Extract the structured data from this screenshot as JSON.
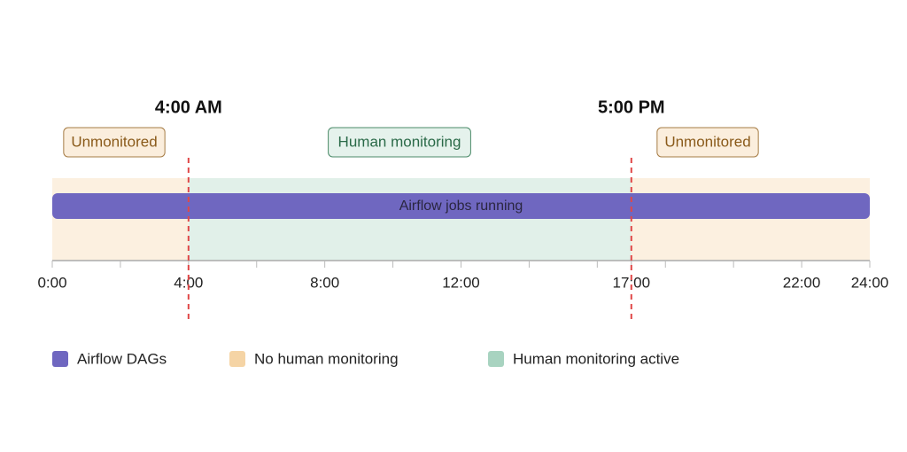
{
  "chart_data": {
    "type": "timeline",
    "xlim": [
      0,
      24
    ],
    "xticks": [
      {
        "value": 0,
        "label": "0:00"
      },
      {
        "value": 4,
        "label": "4:00"
      },
      {
        "value": 8,
        "label": "8:00"
      },
      {
        "value": 12,
        "label": "12:00"
      },
      {
        "value": 17,
        "label": "17:00"
      },
      {
        "value": 22,
        "label": "22:00"
      },
      {
        "value": 24,
        "label": "24:00"
      }
    ],
    "minor_xticks": [
      2,
      6,
      10,
      14,
      16,
      18,
      20
    ],
    "series": [
      {
        "name": "Airflow DAGs",
        "color": "#6f67c0"
      },
      {
        "name": "No human monitoring",
        "color": "#f5d4a5"
      },
      {
        "name": "Human monitoring active",
        "color": "#a8d3c0"
      }
    ],
    "bands": [
      {
        "start": 0,
        "end": 4,
        "label": "Unmonitored",
        "series": 1
      },
      {
        "start": 4,
        "end": 17,
        "label": "Human monitoring",
        "series": 2
      },
      {
        "start": 17,
        "end": 24,
        "label": "Unmonitored",
        "series": 1
      }
    ],
    "bars": [
      {
        "start": 0,
        "end": 24,
        "label": "Airflow jobs running",
        "series": 0
      }
    ],
    "markers": [
      {
        "value": 4,
        "label": "4:00 AM"
      },
      {
        "value": 17,
        "label": "5:00 PM"
      }
    ]
  }
}
